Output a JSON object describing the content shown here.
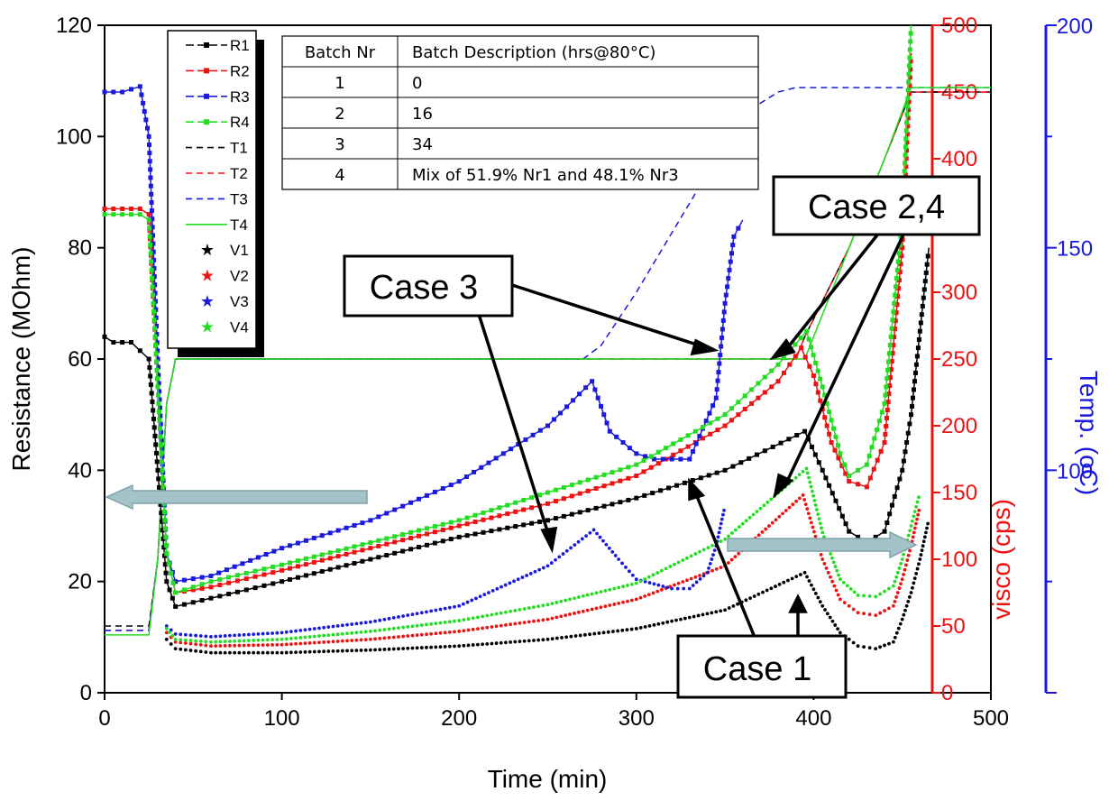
{
  "chart_data": {
    "type": "line",
    "xlabel": "Time (min)",
    "ylabel_left": "Resistance (MOhm)",
    "ylabel_right1": "visco (cps)",
    "ylabel_right2": "Temp. (oC)",
    "xlim": [
      0,
      500
    ],
    "ylim_left": [
      0,
      120
    ],
    "ylim_right1": [
      0,
      500
    ],
    "ylim_right2": [
      50,
      200
    ],
    "x_ticks": [
      0,
      100,
      200,
      300,
      400,
      500
    ],
    "y_left_ticks": [
      0,
      20,
      40,
      60,
      80,
      100,
      120
    ],
    "y_right1_ticks": [
      0,
      50,
      100,
      150,
      200,
      250,
      300,
      350,
      400,
      450,
      500
    ],
    "y_right2_ticks": [
      100,
      150,
      200
    ],
    "colors": {
      "s1": "#000000",
      "s2": "#ee1111",
      "s3": "#1a1adc",
      "s4": "#22dd22",
      "axis_visco": "#ee1111",
      "axis_temp": "#1a1adc",
      "arrow": "#9ab8be"
    },
    "series": [
      {
        "name": "R1",
        "axis": "left",
        "style": "line-square",
        "color": "#000000",
        "x": [
          0,
          5,
          15,
          25,
          30,
          35,
          40,
          60,
          100,
          150,
          200,
          250,
          300,
          350,
          395,
          405,
          420,
          430,
          440,
          450,
          455,
          460,
          465
        ],
        "y": [
          64,
          63,
          63,
          60,
          40,
          20,
          15.5,
          17,
          20,
          24,
          28,
          31,
          35,
          40,
          47,
          40,
          29,
          27,
          29,
          40,
          50,
          65,
          80
        ]
      },
      {
        "name": "R2",
        "axis": "left",
        "style": "line-square",
        "color": "#ee1111",
        "x": [
          0,
          20,
          25,
          30,
          35,
          40,
          60,
          100,
          150,
          200,
          250,
          300,
          350,
          380,
          393,
          400,
          410,
          420,
          430,
          440,
          450,
          455
        ],
        "y": [
          87,
          87,
          86,
          55,
          25,
          18,
          19,
          22,
          26,
          30,
          34,
          39,
          48,
          56,
          62,
          57,
          45,
          38,
          37,
          45,
          80,
          115
        ]
      },
      {
        "name": "R3",
        "axis": "left",
        "style": "line-square",
        "color": "#1a1adc",
        "x": [
          0,
          10,
          20,
          25,
          30,
          35,
          40,
          60,
          100,
          150,
          200,
          250,
          275,
          285,
          300,
          310,
          330,
          345,
          350,
          355,
          360
        ],
        "y": [
          108,
          108,
          109,
          100,
          60,
          25,
          20,
          21,
          26,
          31,
          38,
          48,
          56,
          47,
          43,
          42,
          42,
          53,
          70,
          82,
          85
        ]
      },
      {
        "name": "R4",
        "axis": "left",
        "style": "line-square",
        "color": "#22dd22",
        "x": [
          0,
          20,
          25,
          30,
          35,
          40,
          60,
          100,
          150,
          200,
          250,
          300,
          350,
          380,
          396,
          405,
          415,
          420,
          430,
          440,
          450,
          455
        ],
        "y": [
          86,
          86,
          85,
          55,
          25,
          18,
          20,
          23,
          27,
          31,
          36,
          41,
          50,
          59,
          65,
          55,
          43,
          39,
          41,
          52,
          85,
          120
        ]
      },
      {
        "name": "T1",
        "axis": "temp",
        "style": "dash",
        "color": "#000000",
        "x": [
          0,
          25,
          30,
          35,
          40,
          100,
          200,
          300,
          390,
          395,
          420,
          440,
          455,
          460,
          500
        ],
        "y": [
          65,
          65,
          80,
          115,
          125,
          125,
          125,
          125,
          125,
          130,
          150,
          170,
          185,
          185,
          185
        ]
      },
      {
        "name": "T2",
        "axis": "temp",
        "style": "dash",
        "color": "#ee1111",
        "x": [
          0,
          25,
          30,
          35,
          40,
          100,
          200,
          300,
          390,
          395,
          420,
          440,
          455,
          460,
          500
        ],
        "y": [
          64,
          64,
          80,
          115,
          125,
          125,
          125,
          125,
          125,
          130,
          150,
          170,
          185,
          185,
          185
        ]
      },
      {
        "name": "T3",
        "axis": "temp",
        "style": "dash",
        "color": "#1a1adc",
        "x": [
          0,
          25,
          30,
          35,
          40,
          100,
          200,
          270,
          280,
          300,
          330,
          360,
          380,
          390,
          400,
          500
        ],
        "y": [
          64,
          64,
          80,
          115,
          125,
          125,
          125,
          125,
          128,
          140,
          160,
          180,
          185,
          186,
          186,
          186
        ]
      },
      {
        "name": "T4",
        "axis": "temp",
        "style": "solid",
        "color": "#22dd22",
        "x": [
          0,
          25,
          30,
          35,
          40,
          100,
          200,
          300,
          395,
          400,
          420,
          440,
          455,
          460,
          500
        ],
        "y": [
          63,
          63,
          80,
          115,
          125,
          125,
          125,
          125,
          125,
          130,
          150,
          170,
          186,
          186,
          186
        ]
      },
      {
        "name": "V1",
        "axis": "visco",
        "style": "star",
        "color": "#000000",
        "x": [
          35,
          40,
          60,
          100,
          150,
          200,
          250,
          300,
          350,
          395,
          405,
          415,
          425,
          435,
          445,
          450,
          455,
          460,
          465
        ],
        "y": [
          40,
          33,
          30,
          30,
          32,
          35,
          40,
          48,
          62,
          90,
          65,
          45,
          35,
          33,
          38,
          55,
          75,
          100,
          130
        ]
      },
      {
        "name": "V2",
        "axis": "visco",
        "style": "star",
        "color": "#ee1111",
        "x": [
          35,
          40,
          60,
          100,
          150,
          200,
          250,
          300,
          350,
          394,
          405,
          415,
          425,
          435,
          445,
          450,
          455,
          460
        ],
        "y": [
          45,
          38,
          35,
          36,
          40,
          46,
          55,
          70,
          95,
          148,
          100,
          70,
          60,
          58,
          65,
          85,
          110,
          140
        ]
      },
      {
        "name": "V3",
        "axis": "visco",
        "style": "star",
        "color": "#1a1adc",
        "x": [
          35,
          40,
          60,
          100,
          150,
          200,
          250,
          276,
          290,
          300,
          320,
          330,
          340,
          345,
          350
        ],
        "y": [
          50,
          44,
          42,
          45,
          53,
          65,
          95,
          122,
          100,
          85,
          78,
          78,
          90,
          110,
          140
        ]
      },
      {
        "name": "V4",
        "axis": "visco",
        "style": "star",
        "color": "#22dd22",
        "x": [
          35,
          40,
          60,
          100,
          150,
          200,
          250,
          300,
          350,
          396,
          405,
          415,
          425,
          435,
          445,
          450,
          455,
          460
        ],
        "y": [
          48,
          40,
          38,
          40,
          46,
          54,
          66,
          82,
          115,
          168,
          120,
          85,
          73,
          72,
          80,
          100,
          125,
          150
        ]
      }
    ],
    "legend": {
      "placement": "top-left",
      "entries": [
        "R1",
        "R2",
        "R3",
        "R4",
        "T1",
        "T2",
        "T3",
        "T4",
        "V1",
        "V2",
        "V3",
        "V4"
      ]
    },
    "table": {
      "header": [
        "Batch Nr",
        "Batch Description (hrs@80°C)"
      ],
      "rows": [
        [
          "1",
          "0"
        ],
        [
          "2",
          "16"
        ],
        [
          "3",
          "34"
        ],
        [
          "4",
          "Mix of 51.9% Nr1 and 48.1% Nr3"
        ]
      ]
    },
    "annotations": [
      {
        "text": "Case 2,4",
        "targets_time": [
          [
            390,
            268
          ],
          [
            365,
            148
          ]
        ]
      },
      {
        "text": "Case 3",
        "targets_time": [
          [
            355,
            290
          ],
          [
            253,
            170
          ]
        ]
      },
      {
        "text": "Case 1",
        "targets_time": [
          [
            390,
            455
          ],
          [
            330,
            550
          ]
        ]
      }
    ],
    "axis_arrows": [
      {
        "direction": "left",
        "refers_to": "ylabel_left"
      },
      {
        "direction": "right",
        "refers_to": "ylabel_right"
      }
    ]
  }
}
